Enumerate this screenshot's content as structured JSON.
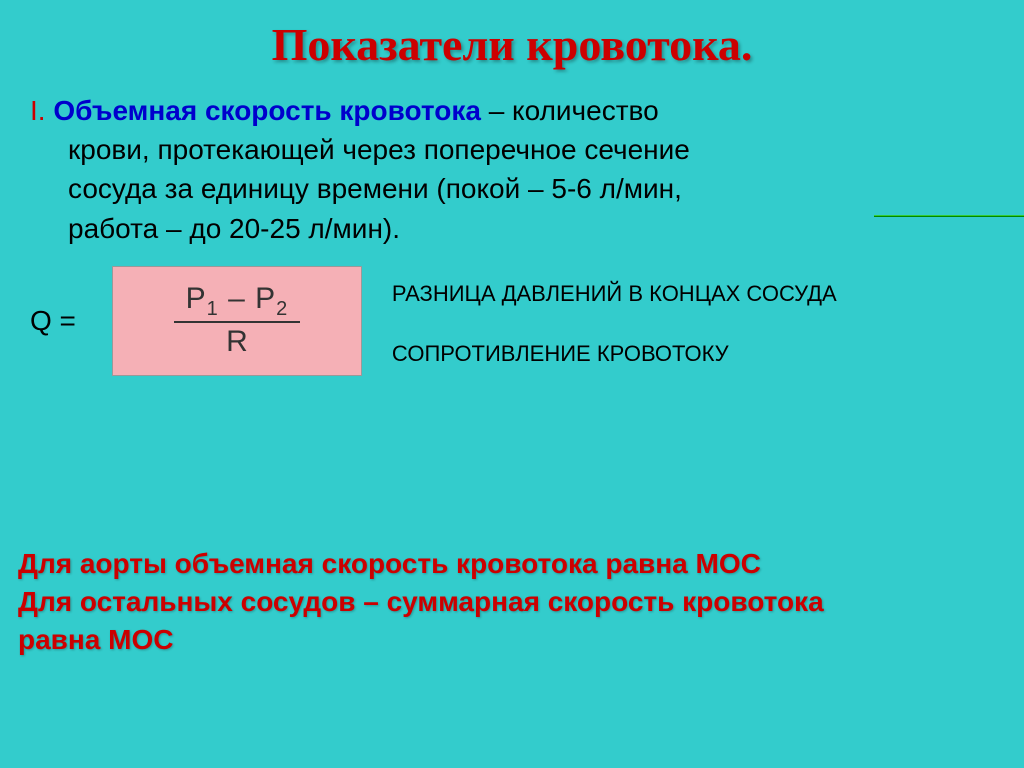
{
  "title": "Показатели кровотока.",
  "def": {
    "roman": "I. ",
    "term": "Объемная скорость кровотока",
    "dash": " – количество",
    "line2": "крови, протекающей через поперечное сечение",
    "line3": "сосуда за единицу времени (покой – 5-6 л/мин,",
    "line4": "работа – до 20-25 л/мин)."
  },
  "formula": {
    "q": "Q =",
    "p1": "P",
    "sub1": "1",
    "minus": " – ",
    "p2": "P",
    "sub2": "2",
    "r": "R"
  },
  "labels": {
    "top": "РАЗНИЦА ДАВЛЕНИЙ В КОНЦАХ СОСУДА",
    "bot": "СОПРОТИВЛЕНИЕ КРОВОТОКУ"
  },
  "note": {
    "line1": "Для аорты объемная скорость кровотока равна МОС",
    "line2": "Для остальных сосудов – суммарная скорость кровотока",
    "line3": " равна МОС"
  },
  "colors": {
    "background": "#33cccc",
    "title": "#cc0000",
    "term": "#0000cc",
    "formula_bg": "#f5b0b6",
    "note": "#cc0000"
  }
}
